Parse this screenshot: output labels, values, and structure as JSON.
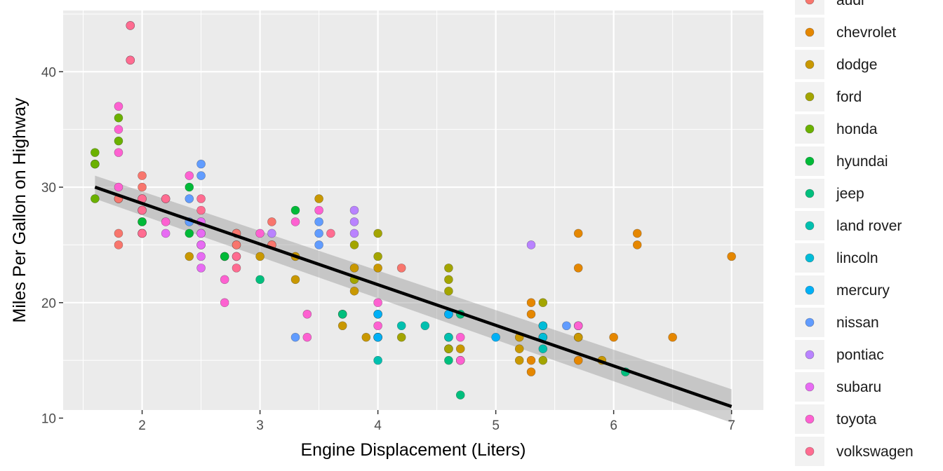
{
  "chart_data": {
    "type": "scatter",
    "xlabel": "Engine Displacement (Liters)",
    "ylabel": "Miles Per Gallon on Highway",
    "xlim": [
      1.33,
      7.27
    ],
    "ylim": [
      10.7,
      45.3
    ],
    "x_ticks": [
      2,
      3,
      4,
      5,
      6,
      7
    ],
    "y_ticks": [
      10,
      20,
      30,
      40
    ],
    "grid": true,
    "legend_position": "right",
    "trend_line": {
      "x": [
        1.6,
        7.0
      ],
      "y": [
        30.0,
        11.0
      ],
      "ci_start": [
        29.0,
        31.0
      ],
      "ci_end": [
        9.6,
        12.5
      ],
      "color": "#000000"
    },
    "series": [
      {
        "name": "audi",
        "color": "#F8766D",
        "points": [
          [
            1.8,
            29
          ],
          [
            1.8,
            29
          ],
          [
            2,
            31
          ],
          [
            2,
            30
          ],
          [
            2.8,
            26
          ],
          [
            2.8,
            26
          ],
          [
            3.1,
            27
          ],
          [
            1.8,
            26
          ],
          [
            1.8,
            25
          ],
          [
            2,
            28
          ],
          [
            2,
            29
          ],
          [
            2.8,
            25
          ],
          [
            2.8,
            25
          ],
          [
            3.1,
            25
          ],
          [
            3.1,
            25
          ],
          [
            4.2,
            23
          ],
          [
            2,
            26
          ],
          [
            2.8,
            24
          ]
        ]
      },
      {
        "name": "chevrolet",
        "color": "#E58700",
        "points": [
          [
            5.7,
            26
          ],
          [
            5.7,
            23
          ],
          [
            6.2,
            26
          ],
          [
            6.2,
            25
          ],
          [
            7,
            24
          ],
          [
            5.3,
            20
          ],
          [
            5.3,
            15
          ],
          [
            5.3,
            19
          ],
          [
            5.7,
            17
          ],
          [
            6.5,
            17
          ],
          [
            5.3,
            14
          ],
          [
            6,
            17
          ],
          [
            5.7,
            15
          ]
        ]
      },
      {
        "name": "dodge",
        "color": "#C99800",
        "points": [
          [
            2.4,
            24
          ],
          [
            3,
            24
          ],
          [
            3.3,
            22
          ],
          [
            3.3,
            24
          ],
          [
            3.8,
            21
          ],
          [
            3.8,
            23
          ],
          [
            4,
            23
          ],
          [
            3.7,
            18
          ],
          [
            3.9,
            17
          ],
          [
            4.7,
            16
          ],
          [
            5.2,
            15
          ],
          [
            5.2,
            16
          ],
          [
            5.7,
            17
          ],
          [
            5.9,
            15
          ],
          [
            5.2,
            17
          ],
          [
            4.7,
            15
          ],
          [
            3.5,
            29
          ],
          [
            3.7,
            19
          ]
        ]
      },
      {
        "name": "ford",
        "color": "#A3A500",
        "points": [
          [
            4.6,
            17
          ],
          [
            5.4,
            15
          ],
          [
            4,
            26
          ],
          [
            4,
            24
          ],
          [
            4.6,
            23
          ],
          [
            4.6,
            22
          ],
          [
            4.6,
            21
          ],
          [
            5.4,
            20
          ],
          [
            4,
            19
          ],
          [
            4.6,
            16
          ],
          [
            4.2,
            17
          ],
          [
            3.8,
            25
          ],
          [
            3.8,
            22
          ],
          [
            4,
            17
          ],
          [
            5.4,
            18
          ],
          [
            5.4,
            17
          ],
          [
            4.6,
            16
          ]
        ]
      },
      {
        "name": "honda",
        "color": "#6BB100",
        "points": [
          [
            1.6,
            33
          ],
          [
            1.6,
            32
          ],
          [
            1.6,
            32
          ],
          [
            1.6,
            29
          ],
          [
            1.8,
            36
          ],
          [
            1.8,
            34
          ],
          [
            2,
            27
          ]
        ]
      },
      {
        "name": "hyundai",
        "color": "#00BA38",
        "points": [
          [
            2.4,
            30
          ],
          [
            2.4,
            26
          ],
          [
            2.7,
            24
          ],
          [
            3.3,
            28
          ],
          [
            2,
            27
          ],
          [
            2.7,
            24
          ]
        ]
      },
      {
        "name": "jeep",
        "color": "#00BF7D",
        "points": [
          [
            3,
            22
          ],
          [
            3.7,
            19
          ],
          [
            4,
            17
          ],
          [
            4.7,
            19
          ],
          [
            5.7,
            18
          ],
          [
            6.1,
            14
          ],
          [
            4.7,
            12
          ],
          [
            4.6,
            15
          ]
        ]
      },
      {
        "name": "land rover",
        "color": "#00C0AF",
        "points": [
          [
            4,
            15
          ],
          [
            4.2,
            18
          ],
          [
            4.4,
            18
          ],
          [
            4.6,
            17
          ],
          [
            5.4,
            16
          ]
        ]
      },
      {
        "name": "lincoln",
        "color": "#00BCD8",
        "points": [
          [
            4.6,
            19
          ],
          [
            5.4,
            18
          ],
          [
            5.4,
            17
          ]
        ]
      },
      {
        "name": "mercury",
        "color": "#00B0F6",
        "points": [
          [
            4,
            19
          ],
          [
            4,
            17
          ],
          [
            4.6,
            19
          ],
          [
            5,
            17
          ]
        ]
      },
      {
        "name": "nissan",
        "color": "#619CFF",
        "points": [
          [
            2.5,
            32
          ],
          [
            2.5,
            31
          ],
          [
            2.4,
            29
          ],
          [
            2.4,
            27
          ],
          [
            3.5,
            26
          ],
          [
            3.5,
            25
          ],
          [
            3.3,
            17
          ],
          [
            5.6,
            18
          ],
          [
            3.5,
            27
          ]
        ]
      },
      {
        "name": "pontiac",
        "color": "#B983FF",
        "points": [
          [
            3.1,
            26
          ],
          [
            3.8,
            28
          ],
          [
            3.8,
            27
          ],
          [
            3.8,
            26
          ],
          [
            5.3,
            25
          ]
        ]
      },
      {
        "name": "subaru",
        "color": "#E76BF3",
        "points": [
          [
            2.5,
            26
          ],
          [
            2.5,
            25
          ],
          [
            2.5,
            24
          ],
          [
            2.2,
            26
          ],
          [
            2.5,
            27
          ],
          [
            2.5,
            23
          ],
          [
            2.5,
            25
          ],
          [
            2.5,
            26
          ]
        ]
      },
      {
        "name": "toyota",
        "color": "#FD61D1",
        "points": [
          [
            1.8,
            37
          ],
          [
            1.8,
            35
          ],
          [
            1.8,
            33
          ],
          [
            1.8,
            30
          ],
          [
            2.2,
            29
          ],
          [
            2.4,
            31
          ],
          [
            2.7,
            20
          ],
          [
            2.7,
            22
          ],
          [
            3,
            26
          ],
          [
            3.3,
            27
          ],
          [
            3.4,
            19
          ],
          [
            3.4,
            17
          ],
          [
            4,
            20
          ],
          [
            4,
            18
          ],
          [
            4.7,
            17
          ],
          [
            4.7,
            15
          ],
          [
            5.7,
            18
          ],
          [
            3.5,
            28
          ],
          [
            2.2,
            27
          ],
          [
            1.9,
            44
          ],
          [
            1.9,
            41
          ]
        ]
      },
      {
        "name": "volkswagen",
        "color": "#FF6C91",
        "points": [
          [
            2,
            26
          ],
          [
            2,
            29
          ],
          [
            2.8,
            23
          ],
          [
            2,
            28
          ],
          [
            1.9,
            44
          ],
          [
            1.9,
            41
          ],
          [
            2.5,
            29
          ],
          [
            2.5,
            28
          ],
          [
            3.6,
            26
          ],
          [
            2.2,
            29
          ],
          [
            2.8,
            24
          ],
          [
            2,
            26
          ]
        ]
      }
    ]
  }
}
